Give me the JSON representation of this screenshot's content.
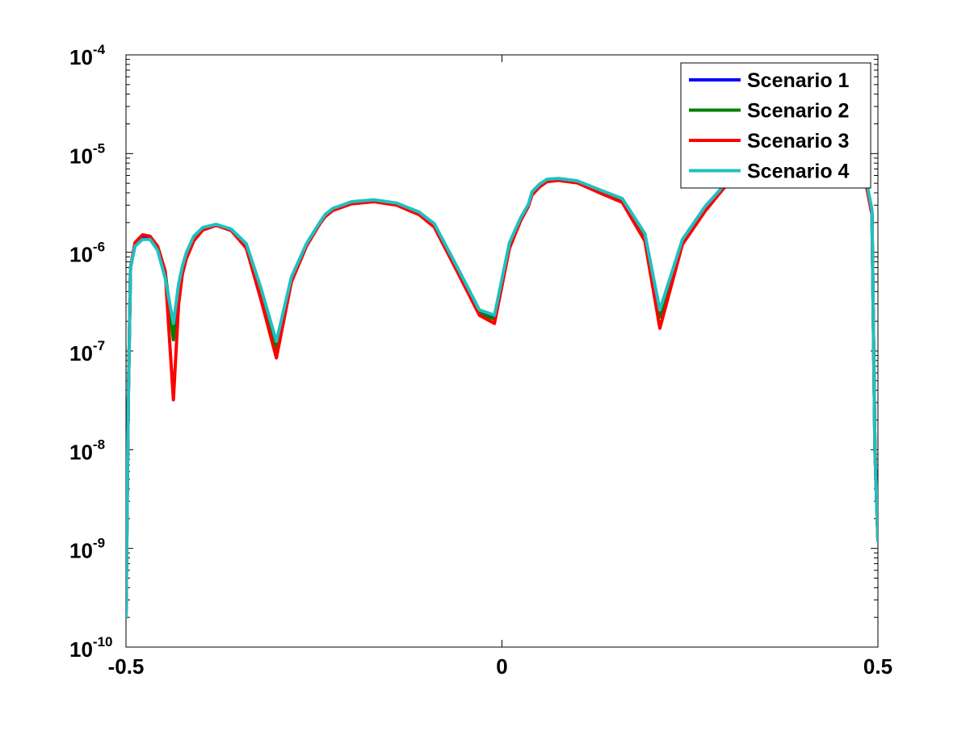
{
  "chart_data": {
    "type": "line",
    "title": "",
    "xlabel": "",
    "ylabel": "",
    "xlim": [
      -0.5,
      0.5
    ],
    "ylim": [
      1e-10,
      0.0001
    ],
    "yscale": "log",
    "grid": false,
    "legend": "top-right",
    "x_ticks": [
      {
        "value": -0.5,
        "label": "-0.5"
      },
      {
        "value": 0,
        "label": "0"
      },
      {
        "value": 0.5,
        "label": "0.5"
      }
    ],
    "y_ticks": [
      {
        "value": 1e-10,
        "base": "10",
        "exp": "-10"
      },
      {
        "value": 1e-09,
        "base": "10",
        "exp": "-9"
      },
      {
        "value": 1e-08,
        "base": "10",
        "exp": "-8"
      },
      {
        "value": 1e-07,
        "base": "10",
        "exp": "-7"
      },
      {
        "value": 1e-06,
        "base": "10",
        "exp": "-6"
      },
      {
        "value": 1e-05,
        "base": "10",
        "exp": "-5"
      },
      {
        "value": 0.0001,
        "base": "10",
        "exp": "-4"
      }
    ],
    "series": [
      {
        "name": "Scenario 1",
        "color": "#0000ff",
        "x": [
          -0.5,
          -0.497,
          -0.494,
          -0.488,
          -0.478,
          -0.468,
          -0.458,
          -0.448,
          -0.437,
          -0.43,
          -0.425,
          -0.42,
          -0.41,
          -0.398,
          -0.38,
          -0.36,
          -0.34,
          -0.32,
          -0.3,
          -0.28,
          -0.26,
          -0.25,
          -0.242,
          -0.235,
          -0.225,
          -0.2,
          -0.17,
          -0.14,
          -0.11,
          -0.09,
          -0.06,
          -0.03,
          -0.01,
          0.01,
          0.025,
          0.035,
          0.04,
          0.05,
          0.06,
          0.075,
          0.1,
          0.13,
          0.16,
          0.19,
          0.21,
          0.24,
          0.27,
          0.29,
          0.305,
          0.315,
          0.32,
          0.325,
          0.335,
          0.35,
          0.37,
          0.39,
          0.41,
          0.43,
          0.45,
          0.47,
          0.485,
          0.492,
          0.496,
          0.5
        ],
        "y": [
          2e-10,
          3e-08,
          7e-07,
          1.2e-06,
          1.45e-06,
          1.4e-06,
          1.1e-06,
          6e-07,
          1.6e-07,
          4.5e-07,
          7e-07,
          9.5e-07,
          1.4e-06,
          1.75e-06,
          1.9e-06,
          1.7e-06,
          1.2e-06,
          4e-07,
          1.2e-07,
          5.5e-07,
          1.2e-06,
          1.6e-06,
          2e-06,
          2.4e-06,
          2.75e-06,
          3.2e-06,
          3.35e-06,
          3.1e-06,
          2.5e-06,
          1.9e-06,
          7e-07,
          2.5e-07,
          2.2e-07,
          1.2e-06,
          2.2e-06,
          3e-06,
          4e-06,
          4.8e-06,
          5.4e-06,
          5.5e-06,
          5.2e-06,
          4.2e-06,
          3.4e-06,
          1.5e-06,
          2.5e-07,
          1.3e-06,
          2.8e-06,
          4.2e-06,
          5.8e-06,
          8e-06,
          1.2e-05,
          1.7e-05,
          2.3e-05,
          2.2e-05,
          1.7e-05,
          1.4e-05,
          1.2e-05,
          1.1e-05,
          1e-05,
          9e-06,
          5e-06,
          2.6e-06,
          1e-08,
          1.2e-09
        ]
      },
      {
        "name": "Scenario 2",
        "color": "#008000",
        "x": [
          -0.5,
          -0.497,
          -0.494,
          -0.488,
          -0.478,
          -0.468,
          -0.458,
          -0.448,
          -0.437,
          -0.43,
          -0.425,
          -0.42,
          -0.41,
          -0.398,
          -0.38,
          -0.36,
          -0.34,
          -0.32,
          -0.3,
          -0.28,
          -0.26,
          -0.25,
          -0.242,
          -0.235,
          -0.225,
          -0.2,
          -0.17,
          -0.14,
          -0.11,
          -0.09,
          -0.06,
          -0.03,
          -0.01,
          0.01,
          0.025,
          0.035,
          0.04,
          0.05,
          0.06,
          0.075,
          0.1,
          0.13,
          0.16,
          0.19,
          0.21,
          0.24,
          0.27,
          0.29,
          0.305,
          0.315,
          0.32,
          0.325,
          0.335,
          0.35,
          0.37,
          0.39,
          0.41,
          0.43,
          0.45,
          0.47,
          0.485,
          0.492,
          0.496,
          0.5
        ],
        "y": [
          2e-10,
          3e-08,
          7e-07,
          1.25e-06,
          1.5e-06,
          1.45e-06,
          1.15e-06,
          6.5e-07,
          1.3e-07,
          4e-07,
          6.5e-07,
          9e-07,
          1.35e-06,
          1.7e-06,
          1.88e-06,
          1.68e-06,
          1.15e-06,
          3.6e-07,
          1.05e-07,
          5.2e-07,
          1.18e-06,
          1.58e-06,
          1.98e-06,
          2.35e-06,
          2.7e-06,
          3.15e-06,
          3.3e-06,
          3.05e-06,
          2.45e-06,
          1.85e-06,
          6.8e-07,
          2.4e-07,
          2.1e-07,
          1.15e-06,
          2.15e-06,
          2.95e-06,
          3.9e-06,
          4.7e-06,
          5.3e-06,
          5.4e-06,
          5.1e-06,
          4.1e-06,
          3.3e-06,
          1.4e-06,
          2.2e-07,
          1.25e-06,
          2.7e-06,
          4.1e-06,
          5.6e-06,
          7.8e-06,
          1.15e-05,
          1.65e-05,
          2.25e-05,
          2.15e-05,
          1.65e-05,
          1.35e-05,
          1.15e-05,
          1.05e-05,
          9.8e-06,
          8.8e-06,
          4.8e-06,
          2.5e-06,
          1e-08,
          1.2e-09
        ]
      },
      {
        "name": "Scenario 3",
        "color": "#ff0000",
        "x": [
          -0.5,
          -0.497,
          -0.494,
          -0.488,
          -0.478,
          -0.468,
          -0.458,
          -0.448,
          -0.437,
          -0.43,
          -0.425,
          -0.42,
          -0.41,
          -0.398,
          -0.38,
          -0.36,
          -0.34,
          -0.32,
          -0.3,
          -0.28,
          -0.26,
          -0.25,
          -0.242,
          -0.235,
          -0.225,
          -0.2,
          -0.17,
          -0.14,
          -0.11,
          -0.09,
          -0.06,
          -0.03,
          -0.01,
          0.01,
          0.025,
          0.035,
          0.04,
          0.05,
          0.06,
          0.075,
          0.1,
          0.13,
          0.16,
          0.19,
          0.21,
          0.24,
          0.27,
          0.29,
          0.305,
          0.315,
          0.32,
          0.325,
          0.335,
          0.35,
          0.37,
          0.39,
          0.41,
          0.43,
          0.45,
          0.47,
          0.485,
          0.492,
          0.496,
          0.5
        ],
        "y": [
          2e-10,
          3e-08,
          7e-07,
          1.25e-06,
          1.5e-06,
          1.45e-06,
          1.15e-06,
          6.5e-07,
          3.2e-08,
          3e-07,
          6e-07,
          8.5e-07,
          1.3e-06,
          1.68e-06,
          1.87e-06,
          1.66e-06,
          1.1e-06,
          3.2e-07,
          8.5e-08,
          5e-07,
          1.15e-06,
          1.55e-06,
          1.95e-06,
          2.3e-06,
          2.65e-06,
          3.1e-06,
          3.25e-06,
          3e-06,
          2.4e-06,
          1.8e-06,
          6.5e-07,
          2.3e-07,
          1.9e-07,
          1.1e-06,
          2.1e-06,
          2.9e-06,
          3.8e-06,
          4.6e-06,
          5.2e-06,
          5.35e-06,
          5.05e-06,
          4e-06,
          3.2e-06,
          1.3e-06,
          1.7e-07,
          1.2e-06,
          2.6e-06,
          4e-06,
          5.5e-06,
          7.6e-06,
          1.1e-05,
          1.6e-05,
          2.2e-05,
          2.1e-05,
          1.6e-05,
          1.3e-05,
          1.1e-05,
          1e-05,
          9.5e-06,
          8.5e-06,
          4.6e-06,
          2.4e-06,
          1e-08,
          1.2e-09
        ]
      },
      {
        "name": "Scenario 4",
        "color": "#20c0c0",
        "x": [
          -0.5,
          -0.497,
          -0.494,
          -0.488,
          -0.478,
          -0.468,
          -0.458,
          -0.448,
          -0.437,
          -0.43,
          -0.425,
          -0.42,
          -0.41,
          -0.398,
          -0.38,
          -0.36,
          -0.34,
          -0.32,
          -0.3,
          -0.28,
          -0.26,
          -0.25,
          -0.242,
          -0.235,
          -0.225,
          -0.2,
          -0.17,
          -0.14,
          -0.11,
          -0.09,
          -0.06,
          -0.03,
          -0.01,
          0.01,
          0.025,
          0.035,
          0.04,
          0.05,
          0.06,
          0.075,
          0.1,
          0.13,
          0.16,
          0.19,
          0.21,
          0.24,
          0.27,
          0.29,
          0.305,
          0.315,
          0.32,
          0.325,
          0.335,
          0.35,
          0.37,
          0.39,
          0.41,
          0.43,
          0.45,
          0.47,
          0.485,
          0.492,
          0.496,
          0.5
        ],
        "y": [
          2e-10,
          3e-08,
          7e-07,
          1.15e-06,
          1.35e-06,
          1.35e-06,
          1.05e-06,
          5.5e-07,
          1.9e-07,
          4.8e-07,
          7.2e-07,
          9.8e-07,
          1.45e-06,
          1.78e-06,
          1.92e-06,
          1.72e-06,
          1.22e-06,
          4.2e-07,
          1.25e-07,
          5.6e-07,
          1.22e-06,
          1.62e-06,
          2.02e-06,
          2.42e-06,
          2.78e-06,
          3.25e-06,
          3.4e-06,
          3.15e-06,
          2.55e-06,
          1.95e-06,
          7.2e-07,
          2.6e-07,
          2.3e-07,
          1.25e-06,
          2.25e-06,
          3.05e-06,
          4.1e-06,
          4.9e-06,
          5.5e-06,
          5.6e-06,
          5.3e-06,
          4.3e-06,
          3.5e-06,
          1.55e-06,
          2.6e-07,
          1.35e-06,
          2.9e-06,
          4.3e-06,
          6e-06,
          8.2e-06,
          1.25e-05,
          1.75e-05,
          2.35e-05,
          2.25e-05,
          1.75e-05,
          1.45e-05,
          1.25e-05,
          1.15e-05,
          1.05e-05,
          9.2e-06,
          5.2e-06,
          2.7e-06,
          1e-08,
          1.2e-09
        ]
      }
    ]
  }
}
